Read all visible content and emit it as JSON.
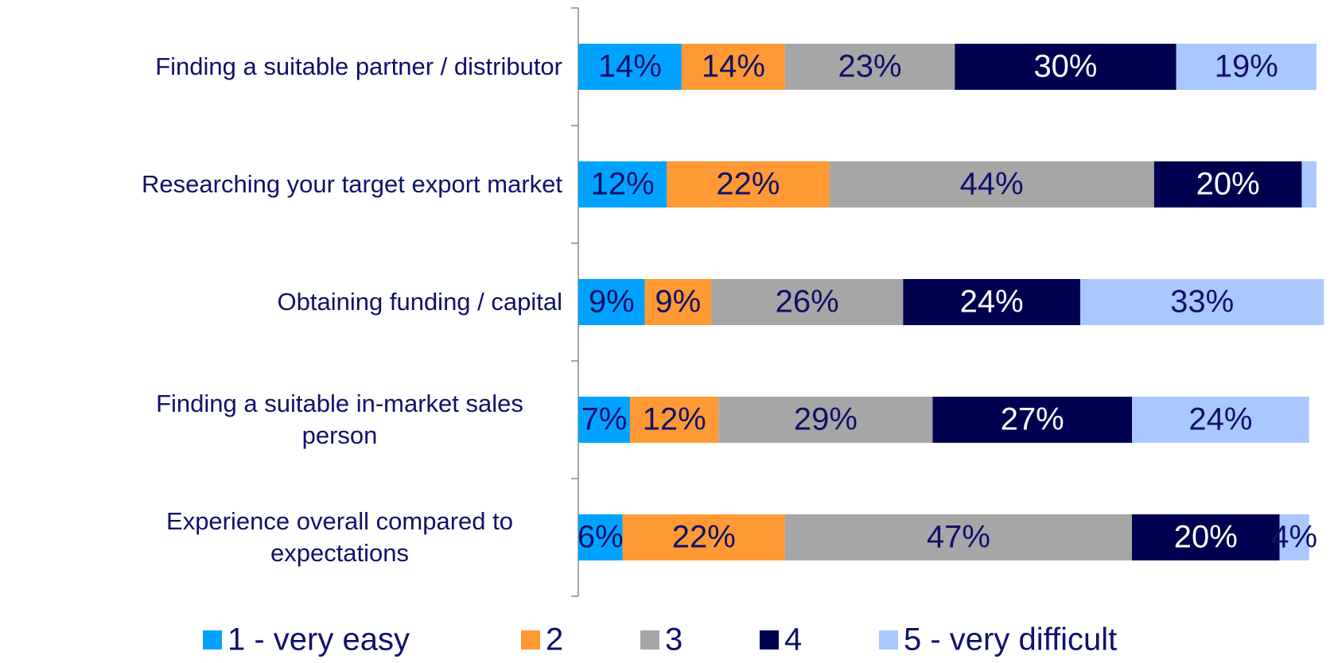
{
  "chart_data": {
    "type": "stacked-bar-horizontal",
    "categories": [
      "Finding a suitable partner / distributor",
      "Researching your target export market",
      "Obtaining funding / capital",
      "Finding a suitable in-market sales person",
      "Experience overall compared to expectations"
    ],
    "xlim": [
      0,
      100
    ],
    "legend": "bottom",
    "series": [
      {
        "name": "1 - very easy",
        "color": "#00a2ff",
        "label_color": "#10106b",
        "values": [
          14,
          12,
          9,
          7,
          6
        ],
        "value_labels": [
          "14%",
          "12%",
          "9%",
          "7%",
          "6%"
        ]
      },
      {
        "name": "2",
        "color": "#ff9933",
        "label_color": "#10106b",
        "values": [
          14,
          22,
          9,
          12,
          22
        ],
        "value_labels": [
          "14%",
          "22%",
          "9%",
          "12%",
          "22%"
        ]
      },
      {
        "name": "3",
        "color": "#a6a6a6",
        "label_color": "#10106b",
        "values": [
          23,
          44,
          26,
          29,
          47
        ],
        "value_labels": [
          "23%",
          "44%",
          "26%",
          "29%",
          "47%"
        ]
      },
      {
        "name": "4",
        "color": "#000050",
        "label_color": "#ffffff",
        "values": [
          30,
          20,
          24,
          27,
          20
        ],
        "value_labels": [
          "30%",
          "20%",
          "24%",
          "27%",
          "20%"
        ]
      },
      {
        "name": "5 - very difficult",
        "color": "#a9c8ff",
        "label_color": "#10106b",
        "values": [
          19,
          2,
          33,
          24,
          4
        ],
        "value_labels": [
          "19%",
          null,
          "33%",
          "24%",
          "4%"
        ]
      }
    ]
  }
}
